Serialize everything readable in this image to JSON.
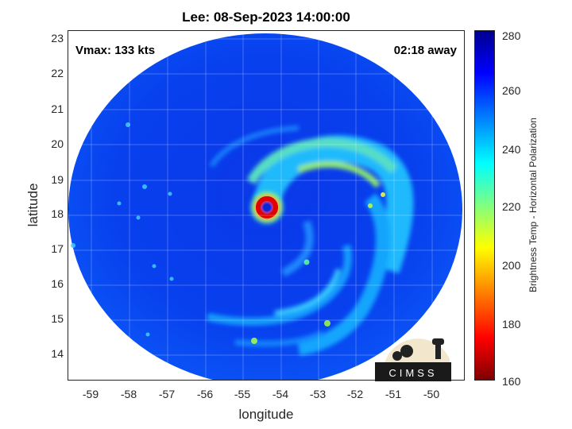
{
  "title": "Lee: 08-Sep-2023 14:00:00",
  "annotations": {
    "vmax": "Vmax: 133 kts",
    "time_away": "02:18 away"
  },
  "axes": {
    "xlabel": "longitude",
    "ylabel": "latitude",
    "xticks": [
      "-59",
      "-58",
      "-57",
      "-56",
      "-55",
      "-54",
      "-53",
      "-52",
      "-51",
      "-50"
    ],
    "yticks": [
      "23",
      "22",
      "21",
      "20",
      "19",
      "18",
      "17",
      "16",
      "15",
      "14"
    ],
    "xlim": [
      -59.6,
      -49.3
    ],
    "ylim": [
      13.2,
      23.3
    ],
    "grid": true
  },
  "colorbar": {
    "label": "Brightness Temp - Horizontal Polarization",
    "ticks": [
      "280",
      "260",
      "240",
      "220",
      "200",
      "180",
      "160"
    ],
    "range": [
      160,
      280
    ],
    "colors": [
      "#7f0000",
      "#ff0000",
      "#ff8000",
      "#ffff00",
      "#80ff80",
      "#00ffff",
      "#0080ff",
      "#0000ff",
      "#00008f"
    ]
  },
  "storm_center": {
    "lon": -54.4,
    "lat": 18.2
  },
  "logo": {
    "text": "CIMSS"
  }
}
